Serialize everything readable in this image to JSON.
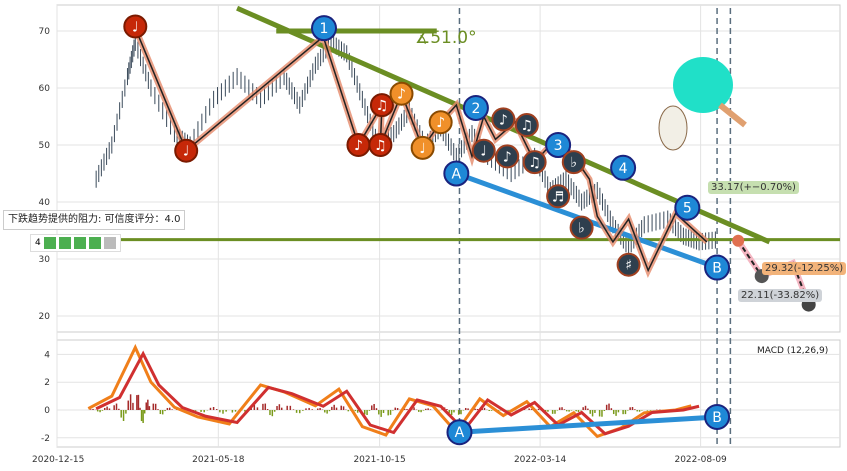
{
  "chart_data": {
    "type": "line",
    "title": "",
    "x_ticks": [
      "2020-12-15",
      "2021-05-18",
      "2021-10-15",
      "2022-03-14",
      "2022-08-09"
    ],
    "price_panel": {
      "ylim": [
        17,
        74
      ],
      "y_ticks": [
        20,
        30,
        40,
        50,
        60,
        70
      ]
    },
    "macd_panel": {
      "label": "MACD (12,26,9)",
      "ylim": [
        -2.5,
        5
      ],
      "y_ticks": [
        4,
        2,
        0,
        -2
      ]
    },
    "price": [
      [
        0.05,
        44
      ],
      [
        0.07,
        50
      ],
      [
        0.09,
        62
      ],
      [
        0.1,
        68
      ],
      [
        0.12,
        60
      ],
      [
        0.15,
        52
      ],
      [
        0.17,
        50
      ],
      [
        0.2,
        58
      ],
      [
        0.23,
        62
      ],
      [
        0.26,
        58
      ],
      [
        0.29,
        62
      ],
      [
        0.31,
        57
      ],
      [
        0.33,
        64
      ],
      [
        0.35,
        68
      ],
      [
        0.37,
        66
      ],
      [
        0.39,
        58
      ],
      [
        0.41,
        50
      ],
      [
        0.43,
        52
      ],
      [
        0.45,
        56
      ],
      [
        0.47,
        50
      ],
      [
        0.49,
        53
      ],
      [
        0.51,
        48
      ],
      [
        0.53,
        52
      ],
      [
        0.55,
        48
      ],
      [
        0.58,
        45
      ],
      [
        0.61,
        48
      ],
      [
        0.63,
        42
      ],
      [
        0.65,
        44
      ],
      [
        0.67,
        40
      ],
      [
        0.69,
        42
      ],
      [
        0.71,
        36
      ],
      [
        0.73,
        32
      ],
      [
        0.75,
        36
      ],
      [
        0.78,
        37
      ],
      [
        0.8,
        34
      ],
      [
        0.82,
        33
      ],
      [
        0.845,
        33.4
      ]
    ],
    "zigzag": [
      [
        0.1,
        70.5
      ],
      [
        0.165,
        49
      ],
      [
        0.34,
        69
      ],
      [
        0.385,
        50
      ],
      [
        0.415,
        57
      ],
      [
        0.413,
        50
      ],
      [
        0.44,
        59
      ],
      [
        0.467,
        49.5
      ],
      [
        0.49,
        54
      ],
      [
        0.51,
        57
      ],
      [
        0.53,
        48
      ],
      [
        0.545,
        55
      ],
      [
        0.56,
        51
      ],
      [
        0.585,
        54
      ],
      [
        0.61,
        47
      ],
      [
        0.637,
        51
      ],
      [
        0.66,
        48
      ],
      [
        0.68,
        44
      ],
      [
        0.69,
        37.5
      ],
      [
        0.71,
        33
      ],
      [
        0.73,
        37
      ],
      [
        0.755,
        28
      ],
      [
        0.79,
        38
      ],
      [
        0.83,
        33
      ]
    ],
    "markers": [
      {
        "label": "1",
        "x": 0.341,
        "y": 70.5,
        "kind": "wave"
      },
      {
        "label": "2",
        "x": 0.535,
        "y": 56.5,
        "kind": "wave"
      },
      {
        "label": "3",
        "x": 0.64,
        "y": 50,
        "kind": "wave"
      },
      {
        "label": "4",
        "x": 0.723,
        "y": 46,
        "kind": "wave"
      },
      {
        "label": "5",
        "x": 0.805,
        "y": 39,
        "kind": "wave"
      },
      {
        "label": "A",
        "x": 0.51,
        "y": 45,
        "kind": "wave"
      },
      {
        "label": "B",
        "x": 0.843,
        "y": 28.5,
        "kind": "wave"
      },
      {
        "label": "♩",
        "x": 0.1,
        "y": 70.8,
        "kind": "red"
      },
      {
        "label": "♩",
        "x": 0.165,
        "y": 49,
        "kind": "red"
      },
      {
        "label": "♪",
        "x": 0.385,
        "y": 50,
        "kind": "red"
      },
      {
        "label": "♫",
        "x": 0.413,
        "y": 50,
        "kind": "red"
      },
      {
        "label": "♫",
        "x": 0.415,
        "y": 57,
        "kind": "red"
      },
      {
        "label": "♪",
        "x": 0.44,
        "y": 59,
        "kind": "orange"
      },
      {
        "label": "♩",
        "x": 0.467,
        "y": 49.5,
        "kind": "orange"
      },
      {
        "label": "♪",
        "x": 0.49,
        "y": 54,
        "kind": "orange"
      },
      {
        "label": "♩",
        "x": 0.545,
        "y": 49,
        "kind": "dark"
      },
      {
        "label": "♪",
        "x": 0.57,
        "y": 54.5,
        "kind": "dark"
      },
      {
        "label": "♪",
        "x": 0.575,
        "y": 48,
        "kind": "dark"
      },
      {
        "label": "♫",
        "x": 0.6,
        "y": 53.5,
        "kind": "dark"
      },
      {
        "label": "♫",
        "x": 0.61,
        "y": 47,
        "kind": "dark"
      },
      {
        "label": "♭",
        "x": 0.66,
        "y": 47,
        "kind": "dark"
      },
      {
        "label": "♬",
        "x": 0.64,
        "y": 41,
        "kind": "dark"
      },
      {
        "label": "♭",
        "x": 0.67,
        "y": 35.5,
        "kind": "dark"
      },
      {
        "label": "♯",
        "x": 0.73,
        "y": 29,
        "kind": "dark"
      }
    ],
    "resistance_level": 33.4,
    "angle_label": "∡51.0°",
    "forecasts": [
      {
        "text": "33.17(+−0.70%)",
        "color": "#c6dfb0"
      },
      {
        "text": "29.32(-12.25%)",
        "color": "#f2b37a"
      },
      {
        "text": "22.11(-33.82%)",
        "color": "#cfd3d8"
      }
    ],
    "macd": [
      [
        0.04,
        0.1
      ],
      [
        0.07,
        1
      ],
      [
        0.1,
        4.5
      ],
      [
        0.12,
        2
      ],
      [
        0.15,
        0.2
      ],
      [
        0.18,
        -0.5
      ],
      [
        0.22,
        -1
      ],
      [
        0.26,
        1.8
      ],
      [
        0.29,
        1.3
      ],
      [
        0.33,
        0.3
      ],
      [
        0.36,
        1.5
      ],
      [
        0.39,
        -1.2
      ],
      [
        0.42,
        -1.8
      ],
      [
        0.45,
        0.8
      ],
      [
        0.48,
        0.3
      ],
      [
        0.51,
        -1.6
      ],
      [
        0.54,
        0.8
      ],
      [
        0.57,
        -0.4
      ],
      [
        0.6,
        0.6
      ],
      [
        0.63,
        -1.2
      ],
      [
        0.66,
        -0.2
      ],
      [
        0.69,
        -1.9
      ],
      [
        0.72,
        -1.3
      ],
      [
        0.75,
        -0.2
      ],
      [
        0.79,
        0
      ],
      [
        0.81,
        0.3
      ]
    ]
  },
  "tooltip": {
    "text": "下跌趋势提供的阻力: 可信度评分：4.0",
    "score": "4"
  }
}
